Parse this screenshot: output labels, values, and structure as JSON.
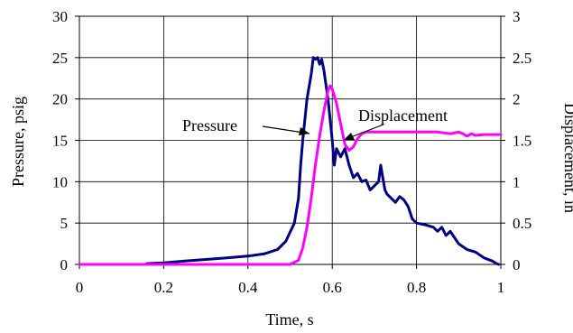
{
  "chart_data": {
    "type": "line",
    "xlabel": "Time, s",
    "ylabel": "Pressure, psig",
    "y2label": "Displacement, in",
    "xlim": [
      0,
      1
    ],
    "ylim": [
      0,
      30
    ],
    "y2lim": [
      0,
      3
    ],
    "xticks": [
      "0",
      "0.2",
      "0.4",
      "0.6",
      "0.8",
      "1"
    ],
    "yticks": [
      "0",
      "5",
      "10",
      "15",
      "20",
      "25",
      "30"
    ],
    "y2ticks": [
      "0",
      "0.5",
      "1",
      "1.5",
      "2",
      "2.5",
      "3"
    ],
    "grid": true,
    "annotations": [
      "Pressure",
      "Displacement"
    ],
    "series": [
      {
        "name": "Pressure",
        "axis": "left",
        "color": "#000080",
        "points": [
          [
            0.16,
            0.1
          ],
          [
            0.2,
            0.2
          ],
          [
            0.25,
            0.4
          ],
          [
            0.3,
            0.6
          ],
          [
            0.35,
            0.8
          ],
          [
            0.4,
            1.0
          ],
          [
            0.44,
            1.3
          ],
          [
            0.47,
            1.8
          ],
          [
            0.49,
            2.8
          ],
          [
            0.51,
            5
          ],
          [
            0.52,
            8
          ],
          [
            0.525,
            12
          ],
          [
            0.53,
            15
          ],
          [
            0.54,
            20
          ],
          [
            0.55,
            23
          ],
          [
            0.555,
            25
          ],
          [
            0.56,
            24.8
          ],
          [
            0.565,
            25
          ],
          [
            0.57,
            24.2
          ],
          [
            0.575,
            24.8
          ],
          [
            0.58,
            23.5
          ],
          [
            0.59,
            20
          ],
          [
            0.6,
            15
          ],
          [
            0.605,
            12
          ],
          [
            0.61,
            14
          ],
          [
            0.62,
            13
          ],
          [
            0.63,
            14
          ],
          [
            0.64,
            12
          ],
          [
            0.65,
            10.5
          ],
          [
            0.66,
            11
          ],
          [
            0.67,
            10
          ],
          [
            0.68,
            10.2
          ],
          [
            0.69,
            9
          ],
          [
            0.7,
            9.5
          ],
          [
            0.71,
            10
          ],
          [
            0.715,
            12
          ],
          [
            0.72,
            10.5
          ],
          [
            0.725,
            9
          ],
          [
            0.73,
            8.5
          ],
          [
            0.74,
            8
          ],
          [
            0.75,
            7.5
          ],
          [
            0.76,
            8.2
          ],
          [
            0.77,
            7.8
          ],
          [
            0.78,
            7
          ],
          [
            0.79,
            5.5
          ],
          [
            0.8,
            5
          ],
          [
            0.82,
            4.8
          ],
          [
            0.84,
            4.5
          ],
          [
            0.85,
            4
          ],
          [
            0.86,
            4.5
          ],
          [
            0.87,
            3.5
          ],
          [
            0.88,
            4
          ],
          [
            0.9,
            2.5
          ],
          [
            0.92,
            1.8
          ],
          [
            0.94,
            1.5
          ],
          [
            0.96,
            0.8
          ],
          [
            0.98,
            0.4
          ],
          [
            0.99,
            0.1
          ],
          [
            0.995,
            0
          ]
        ]
      },
      {
        "name": "Displacement",
        "axis": "right",
        "color": "#ff00ff",
        "points": [
          [
            0,
            0
          ],
          [
            0.5,
            0
          ],
          [
            0.52,
            0.05
          ],
          [
            0.53,
            0.2
          ],
          [
            0.54,
            0.45
          ],
          [
            0.55,
            0.8
          ],
          [
            0.56,
            1.2
          ],
          [
            0.57,
            1.55
          ],
          [
            0.58,
            1.85
          ],
          [
            0.59,
            2.1
          ],
          [
            0.595,
            2.16
          ],
          [
            0.6,
            2.12
          ],
          [
            0.61,
            1.95
          ],
          [
            0.62,
            1.7
          ],
          [
            0.63,
            1.45
          ],
          [
            0.64,
            1.38
          ],
          [
            0.65,
            1.42
          ],
          [
            0.66,
            1.52
          ],
          [
            0.67,
            1.58
          ],
          [
            0.68,
            1.6
          ],
          [
            0.7,
            1.6
          ],
          [
            0.75,
            1.6
          ],
          [
            0.8,
            1.6
          ],
          [
            0.85,
            1.6
          ],
          [
            0.88,
            1.58
          ],
          [
            0.9,
            1.6
          ],
          [
            0.91,
            1.58
          ],
          [
            0.92,
            1.55
          ],
          [
            0.93,
            1.58
          ],
          [
            0.94,
            1.56
          ],
          [
            0.96,
            1.57
          ],
          [
            0.98,
            1.57
          ],
          [
            1.0,
            1.57
          ]
        ]
      }
    ]
  }
}
